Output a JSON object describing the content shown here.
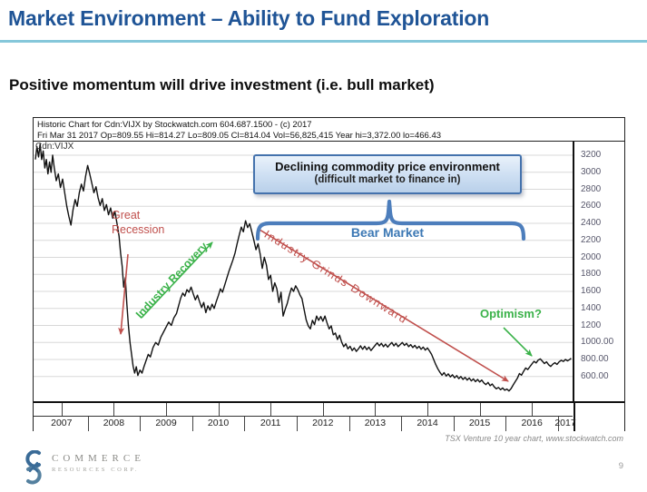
{
  "slide": {
    "title": "Market Environment – Ability to Fund Exploration",
    "subtitle": "Positive momentum will drive investment (i.e. bull market)",
    "caption": "TSX Venture 10 year chart, www.stockwatch.com",
    "page_number": "9",
    "logo_line1": "COMMERCE",
    "logo_line2": "RESOURCES CORP."
  },
  "chart": {
    "header_line1": "Historic Chart for Cdn:VIJX by Stockwatch.com 604.687.1500 - (c) 2017",
    "header_line2": "Fri Mar 31 2017   Op=809.55   Hi=814.27   Lo=809.05   Cl=814.04   Vol=56,825,415   Year hi=3,372.00   lo=466.43",
    "symbol_label": "Cdn:VIJX",
    "annotations": {
      "box_line1": "Declining commodity price environment",
      "box_line2": "(difficult market to finance in)",
      "bear_market": "Bear Market",
      "great_recession": "Great Recession",
      "industry_recovery": "Industry Recovery",
      "industry_grinds": "Industry Grinds Downward",
      "optimism": "Optimism?"
    },
    "colors": {
      "title_blue": "#1f5496",
      "underline_teal": "#85c7da",
      "annotation_red": "#c0504d",
      "annotation_green": "#3bb24a",
      "annotation_blue": "#3c78b4",
      "brace_blue": "#4d7ebc",
      "line_black": "#111111",
      "grid_gray": "#d8d8d8",
      "axis_label_gray": "#57576b"
    }
  },
  "chart_data": {
    "type": "line",
    "title": "Historic Chart for Cdn:VIJX by Stockwatch.com",
    "source": "www.stockwatch.com",
    "grid": "horizontal",
    "xlim": [
      2007,
      2017.25
    ],
    "ylim": [
      300,
      3350
    ],
    "x_ticks": [
      "2007",
      "2008",
      "2009",
      "2010",
      "2011",
      "2012",
      "2013",
      "2014",
      "2015",
      "2016",
      "2017"
    ],
    "y_ticks": [
      {
        "v": 3200,
        "label": "3200"
      },
      {
        "v": 3000,
        "label": "3000"
      },
      {
        "v": 2800,
        "label": "2800"
      },
      {
        "v": 2600,
        "label": "2600"
      },
      {
        "v": 2400,
        "label": "2400"
      },
      {
        "v": 2200,
        "label": "2200"
      },
      {
        "v": 2000,
        "label": "2000"
      },
      {
        "v": 1800,
        "label": "1800"
      },
      {
        "v": 1600,
        "label": "1600"
      },
      {
        "v": 1400,
        "label": "1400"
      },
      {
        "v": 1200,
        "label": "1200"
      },
      {
        "v": 1000,
        "label": "1000.00"
      },
      {
        "v": 800,
        "label": "800.00"
      },
      {
        "v": 600,
        "label": "600.00"
      }
    ],
    "quote": {
      "date": "Fri Mar 31 2017",
      "open": 809.55,
      "high": 814.27,
      "low": 809.05,
      "close": 814.04,
      "volume": "56,825,415",
      "year_high": "3,372.00",
      "year_low": "466.43"
    },
    "series": [
      {
        "name": "Cdn:VIJX (TSX Venture Composite)",
        "points": [
          [
            2007.0,
            3150
          ],
          [
            2007.03,
            3300
          ],
          [
            2007.06,
            3180
          ],
          [
            2007.09,
            3330
          ],
          [
            2007.12,
            3150
          ],
          [
            2007.15,
            3250
          ],
          [
            2007.18,
            3050
          ],
          [
            2007.21,
            3150
          ],
          [
            2007.24,
            2980
          ],
          [
            2007.27,
            3120
          ],
          [
            2007.3,
            3000
          ],
          [
            2007.33,
            3200
          ],
          [
            2007.36,
            3060
          ],
          [
            2007.4,
            2900
          ],
          [
            2007.44,
            2980
          ],
          [
            2007.48,
            2820
          ],
          [
            2007.52,
            2920
          ],
          [
            2007.56,
            2760
          ],
          [
            2007.6,
            2600
          ],
          [
            2007.64,
            2480
          ],
          [
            2007.68,
            2380
          ],
          [
            2007.72,
            2560
          ],
          [
            2007.76,
            2680
          ],
          [
            2007.8,
            2600
          ],
          [
            2007.84,
            2760
          ],
          [
            2007.88,
            2860
          ],
          [
            2007.92,
            2780
          ],
          [
            2007.96,
            2950
          ],
          [
            2008.0,
            3080
          ],
          [
            2008.04,
            2980
          ],
          [
            2008.08,
            2870
          ],
          [
            2008.12,
            2760
          ],
          [
            2008.16,
            2830
          ],
          [
            2008.2,
            2700
          ],
          [
            2008.24,
            2610
          ],
          [
            2008.28,
            2690
          ],
          [
            2008.32,
            2550
          ],
          [
            2008.36,
            2620
          ],
          [
            2008.4,
            2500
          ],
          [
            2008.44,
            2580
          ],
          [
            2008.48,
            2460
          ],
          [
            2008.52,
            2540
          ],
          [
            2008.56,
            2400
          ],
          [
            2008.6,
            2250
          ],
          [
            2008.63,
            2050
          ],
          [
            2008.66,
            1900
          ],
          [
            2008.69,
            1650
          ],
          [
            2008.72,
            1760
          ],
          [
            2008.75,
            1450
          ],
          [
            2008.78,
            1200
          ],
          [
            2008.81,
            1000
          ],
          [
            2008.84,
            860
          ],
          [
            2008.87,
            720
          ],
          [
            2008.9,
            640
          ],
          [
            2008.93,
            715
          ],
          [
            2008.96,
            612
          ],
          [
            2009.0,
            675
          ],
          [
            2009.04,
            640
          ],
          [
            2009.08,
            720
          ],
          [
            2009.12,
            790
          ],
          [
            2009.16,
            860
          ],
          [
            2009.2,
            830
          ],
          [
            2009.25,
            940
          ],
          [
            2009.3,
            1000
          ],
          [
            2009.35,
            970
          ],
          [
            2009.4,
            1060
          ],
          [
            2009.45,
            1120
          ],
          [
            2009.5,
            1180
          ],
          [
            2009.55,
            1240
          ],
          [
            2009.6,
            1200
          ],
          [
            2009.65,
            1290
          ],
          [
            2009.7,
            1340
          ],
          [
            2009.74,
            1430
          ],
          [
            2009.78,
            1520
          ],
          [
            2009.82,
            1580
          ],
          [
            2009.86,
            1545
          ],
          [
            2009.9,
            1620
          ],
          [
            2009.94,
            1590
          ],
          [
            2009.98,
            1650
          ],
          [
            2010.02,
            1570
          ],
          [
            2010.06,
            1500
          ],
          [
            2010.1,
            1555
          ],
          [
            2010.14,
            1480
          ],
          [
            2010.18,
            1410
          ],
          [
            2010.22,
            1470
          ],
          [
            2010.26,
            1350
          ],
          [
            2010.3,
            1430
          ],
          [
            2010.34,
            1380
          ],
          [
            2010.38,
            1450
          ],
          [
            2010.42,
            1400
          ],
          [
            2010.46,
            1480
          ],
          [
            2010.5,
            1550
          ],
          [
            2010.54,
            1630
          ],
          [
            2010.58,
            1590
          ],
          [
            2010.62,
            1670
          ],
          [
            2010.66,
            1750
          ],
          [
            2010.7,
            1830
          ],
          [
            2010.74,
            1900
          ],
          [
            2010.78,
            1970
          ],
          [
            2010.82,
            2050
          ],
          [
            2010.86,
            2160
          ],
          [
            2010.9,
            2260
          ],
          [
            2010.94,
            2355
          ],
          [
            2010.98,
            2300
          ],
          [
            2011.02,
            2430
          ],
          [
            2011.06,
            2350
          ],
          [
            2011.1,
            2395
          ],
          [
            2011.14,
            2300
          ],
          [
            2011.18,
            2200
          ],
          [
            2011.22,
            2090
          ],
          [
            2011.26,
            2160
          ],
          [
            2011.3,
            2040
          ],
          [
            2011.34,
            1870
          ],
          [
            2011.38,
            2000
          ],
          [
            2011.42,
            1910
          ],
          [
            2011.46,
            1740
          ],
          [
            2011.5,
            1790
          ],
          [
            2011.54,
            1600
          ],
          [
            2011.58,
            1700
          ],
          [
            2011.62,
            1630
          ],
          [
            2011.66,
            1470
          ],
          [
            2011.7,
            1590
          ],
          [
            2011.74,
            1310
          ],
          [
            2011.78,
            1390
          ],
          [
            2011.82,
            1460
          ],
          [
            2011.86,
            1560
          ],
          [
            2011.9,
            1640
          ],
          [
            2011.94,
            1600
          ],
          [
            2011.98,
            1665
          ],
          [
            2012.02,
            1620
          ],
          [
            2012.06,
            1560
          ],
          [
            2012.1,
            1515
          ],
          [
            2012.14,
            1390
          ],
          [
            2012.18,
            1265
          ],
          [
            2012.22,
            1195
          ],
          [
            2012.26,
            1160
          ],
          [
            2012.3,
            1260
          ],
          [
            2012.34,
            1210
          ],
          [
            2012.38,
            1310
          ],
          [
            2012.42,
            1260
          ],
          [
            2012.46,
            1305
          ],
          [
            2012.5,
            1250
          ],
          [
            2012.54,
            1310
          ],
          [
            2012.58,
            1230
          ],
          [
            2012.62,
            1160
          ],
          [
            2012.66,
            1195
          ],
          [
            2012.7,
            1090
          ],
          [
            2012.74,
            1110
          ],
          [
            2012.78,
            1035
          ],
          [
            2012.82,
            1085
          ],
          [
            2012.86,
            1005
          ],
          [
            2012.9,
            950
          ],
          [
            2012.94,
            985
          ],
          [
            2012.98,
            925
          ],
          [
            2013.02,
            955
          ],
          [
            2013.06,
            905
          ],
          [
            2013.1,
            935
          ],
          [
            2013.14,
            895
          ],
          [
            2013.18,
            925
          ],
          [
            2013.22,
            960
          ],
          [
            2013.26,
            920
          ],
          [
            2013.3,
            955
          ],
          [
            2013.34,
            915
          ],
          [
            2013.38,
            945
          ],
          [
            2013.42,
            905
          ],
          [
            2013.46,
            935
          ],
          [
            2013.5,
            965
          ],
          [
            2013.54,
            995
          ],
          [
            2013.58,
            960
          ],
          [
            2013.62,
            990
          ],
          [
            2013.66,
            950
          ],
          [
            2013.7,
            980
          ],
          [
            2013.74,
            945
          ],
          [
            2013.78,
            975
          ],
          [
            2013.82,
            1000
          ],
          [
            2013.86,
            960
          ],
          [
            2013.9,
            990
          ],
          [
            2013.94,
            950
          ],
          [
            2013.98,
            975
          ],
          [
            2014.02,
            1000
          ],
          [
            2014.06,
            965
          ],
          [
            2014.1,
            990
          ],
          [
            2014.14,
            950
          ],
          [
            2014.18,
            975
          ],
          [
            2014.22,
            940
          ],
          [
            2014.26,
            965
          ],
          [
            2014.3,
            930
          ],
          [
            2014.34,
            955
          ],
          [
            2014.38,
            920
          ],
          [
            2014.42,
            945
          ],
          [
            2014.46,
            910
          ],
          [
            2014.5,
            935
          ],
          [
            2014.54,
            900
          ],
          [
            2014.58,
            860
          ],
          [
            2014.62,
            800
          ],
          [
            2014.66,
            740
          ],
          [
            2014.7,
            690
          ],
          [
            2014.74,
            650
          ],
          [
            2014.78,
            615
          ],
          [
            2014.82,
            645
          ],
          [
            2014.86,
            605
          ],
          [
            2014.9,
            630
          ],
          [
            2014.94,
            595
          ],
          [
            2014.98,
            620
          ],
          [
            2015.02,
            585
          ],
          [
            2015.06,
            610
          ],
          [
            2015.1,
            575
          ],
          [
            2015.14,
            600
          ],
          [
            2015.18,
            565
          ],
          [
            2015.22,
            590
          ],
          [
            2015.26,
            558
          ],
          [
            2015.3,
            582
          ],
          [
            2015.34,
            548
          ],
          [
            2015.38,
            572
          ],
          [
            2015.42,
            540
          ],
          [
            2015.46,
            565
          ],
          [
            2015.5,
            535
          ],
          [
            2015.54,
            558
          ],
          [
            2015.58,
            525
          ],
          [
            2015.62,
            505
          ],
          [
            2015.66,
            530
          ],
          [
            2015.7,
            492
          ],
          [
            2015.74,
            512
          ],
          [
            2015.78,
            478
          ],
          [
            2015.82,
            455
          ],
          [
            2015.86,
            472
          ],
          [
            2015.9,
            445
          ],
          [
            2015.94,
            465
          ],
          [
            2015.98,
            438
          ],
          [
            2016.02,
            452
          ],
          [
            2016.06,
            430
          ],
          [
            2016.1,
            458
          ],
          [
            2016.14,
            500
          ],
          [
            2016.18,
            540
          ],
          [
            2016.22,
            578
          ],
          [
            2016.26,
            635
          ],
          [
            2016.3,
            615
          ],
          [
            2016.34,
            660
          ],
          [
            2016.38,
            700
          ],
          [
            2016.42,
            682
          ],
          [
            2016.46,
            715
          ],
          [
            2016.5,
            748
          ],
          [
            2016.54,
            778
          ],
          [
            2016.58,
            760
          ],
          [
            2016.62,
            792
          ],
          [
            2016.66,
            806
          ],
          [
            2016.7,
            780
          ],
          [
            2016.74,
            752
          ],
          [
            2016.78,
            772
          ],
          [
            2016.82,
            738
          ],
          [
            2016.86,
            718
          ],
          [
            2016.9,
            745
          ],
          [
            2016.94,
            762
          ],
          [
            2016.98,
            742
          ],
          [
            2017.02,
            772
          ],
          [
            2017.06,
            790
          ],
          [
            2017.1,
            776
          ],
          [
            2017.14,
            800
          ],
          [
            2017.18,
            784
          ],
          [
            2017.22,
            798
          ],
          [
            2017.25,
            814
          ]
        ]
      }
    ]
  }
}
